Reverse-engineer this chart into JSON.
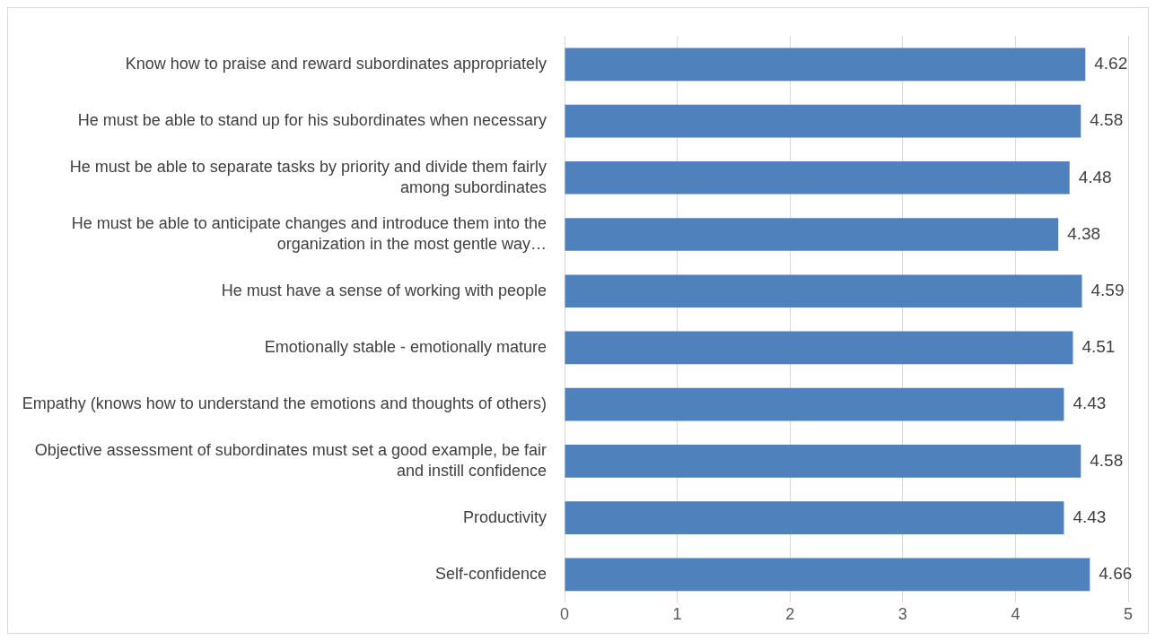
{
  "chart_data": {
    "type": "bar",
    "orientation": "horizontal",
    "categories": [
      "Know how to praise and reward subordinates appropriately",
      "He must be able to stand up for his subordinates when necessary",
      "He must be able to separate tasks by priority and divide them fairly among subordinates",
      "He must be able to anticipate changes and introduce them into the organization in the most gentle way…",
      "He must have a sense of working with people",
      "Emotionally stable - emotionally mature",
      "Empathy (knows how to understand the emotions and thoughts of others)",
      "Objective assessment of subordinates must set a good example, be fair and instill confidence",
      "Productivity",
      "Self-confidence"
    ],
    "values": [
      4.62,
      4.58,
      4.48,
      4.38,
      4.59,
      4.51,
      4.43,
      4.58,
      4.43,
      4.66
    ],
    "color": "#4f81bd",
    "xlim": [
      0,
      5
    ],
    "xticks": [
      0,
      1,
      2,
      3,
      4,
      5
    ],
    "grid": "x",
    "data_labels": true,
    "legend": false
  }
}
